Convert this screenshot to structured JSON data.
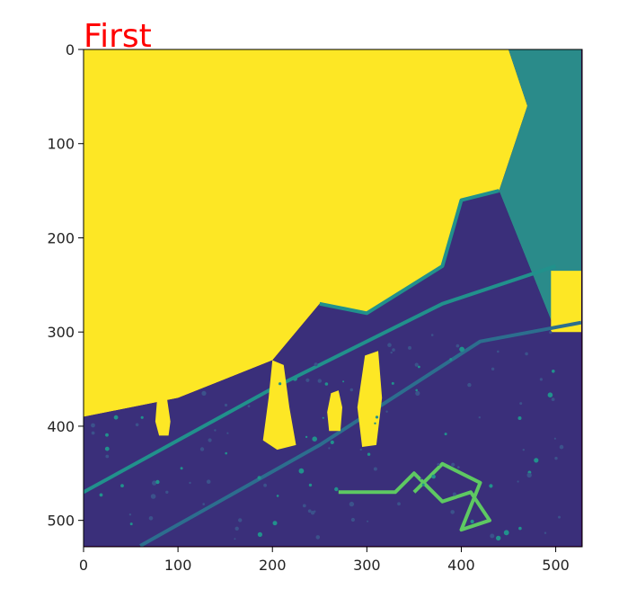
{
  "chart_data": {
    "type": "heatmap",
    "title": "First",
    "title_color": "#ff0000",
    "colormap": "viridis",
    "colormap_colors": [
      "#440154",
      "#3b528b",
      "#21918c",
      "#5ec962",
      "#fde725"
    ],
    "image_size": [
      528,
      528
    ],
    "xlim": [
      0,
      527
    ],
    "ylim": [
      527,
      0
    ],
    "xticks": [
      0,
      100,
      200,
      300,
      400,
      500
    ],
    "yticks": [
      0,
      100,
      200,
      300,
      400,
      500
    ],
    "xlabel": "",
    "ylabel": "",
    "regions": [
      {
        "name": "bright-sky",
        "color": "#fde725",
        "polygon": [
          [
            0,
            0
          ],
          [
            450,
            0
          ],
          [
            470,
            60
          ],
          [
            440,
            150
          ],
          [
            400,
            160
          ],
          [
            380,
            230
          ],
          [
            300,
            280
          ],
          [
            250,
            270
          ],
          [
            200,
            330
          ],
          [
            100,
            370
          ],
          [
            0,
            390
          ]
        ]
      },
      {
        "name": "right-strip",
        "color": "#2a8b8a",
        "polygon": [
          [
            450,
            0
          ],
          [
            527,
            0
          ],
          [
            527,
            300
          ],
          [
            500,
            300
          ],
          [
            480,
            250
          ],
          [
            440,
            150
          ],
          [
            470,
            60
          ]
        ]
      },
      {
        "name": "dark-ground",
        "color": "#3a2f7a",
        "polygon": [
          [
            0,
            390
          ],
          [
            100,
            370
          ],
          [
            200,
            330
          ],
          [
            250,
            270
          ],
          [
            300,
            280
          ],
          [
            380,
            230
          ],
          [
            400,
            160
          ],
          [
            440,
            150
          ],
          [
            480,
            250
          ],
          [
            500,
            300
          ],
          [
            527,
            300
          ],
          [
            527,
            527
          ],
          [
            0,
            527
          ]
        ]
      },
      {
        "name": "right-bright-block",
        "color": "#fde725",
        "polygon": [
          [
            495,
            235
          ],
          [
            527,
            235
          ],
          [
            527,
            300
          ],
          [
            495,
            300
          ]
        ]
      }
    ],
    "blobs": [
      {
        "name": "figure-1",
        "color": "#fde725",
        "polygon": [
          [
            78,
            370
          ],
          [
            88,
            368
          ],
          [
            92,
            395
          ],
          [
            90,
            410
          ],
          [
            80,
            410
          ],
          [
            76,
            395
          ]
        ]
      },
      {
        "name": "figure-2",
        "color": "#fde725",
        "polygon": [
          [
            200,
            330
          ],
          [
            212,
            335
          ],
          [
            218,
            380
          ],
          [
            225,
            420
          ],
          [
            205,
            425
          ],
          [
            190,
            415
          ],
          [
            196,
            370
          ]
        ]
      },
      {
        "name": "figure-3",
        "color": "#fde725",
        "polygon": [
          [
            262,
            365
          ],
          [
            270,
            362
          ],
          [
            274,
            380
          ],
          [
            272,
            405
          ],
          [
            260,
            405
          ],
          [
            258,
            385
          ]
        ]
      },
      {
        "name": "figure-4",
        "color": "#fde725",
        "polygon": [
          [
            298,
            325
          ],
          [
            312,
            320
          ],
          [
            316,
            370
          ],
          [
            310,
            420
          ],
          [
            295,
            422
          ],
          [
            290,
            380
          ]
        ]
      }
    ],
    "lines": [
      {
        "name": "road-diagonal",
        "color": "#21918c",
        "points": [
          [
            0,
            470
          ],
          [
            200,
            360
          ],
          [
            380,
            270
          ],
          [
            500,
            230
          ]
        ]
      },
      {
        "name": "ridge-edge",
        "color": "#21918c",
        "points": [
          [
            250,
            270
          ],
          [
            300,
            280
          ],
          [
            380,
            230
          ],
          [
            400,
            160
          ],
          [
            440,
            150
          ]
        ]
      },
      {
        "name": "rail-line",
        "color": "#2c6e8e",
        "points": [
          [
            60,
            527
          ],
          [
            250,
            420
          ],
          [
            420,
            310
          ],
          [
            527,
            290
          ]
        ]
      },
      {
        "name": "arrow-shape",
        "color": "#5ec962",
        "points": [
          [
            270,
            470
          ],
          [
            330,
            470
          ],
          [
            350,
            450
          ],
          [
            380,
            480
          ],
          [
            410,
            470
          ],
          [
            430,
            500
          ],
          [
            400,
            510
          ],
          [
            420,
            460
          ],
          [
            380,
            440
          ],
          [
            350,
            470
          ]
        ]
      }
    ]
  }
}
